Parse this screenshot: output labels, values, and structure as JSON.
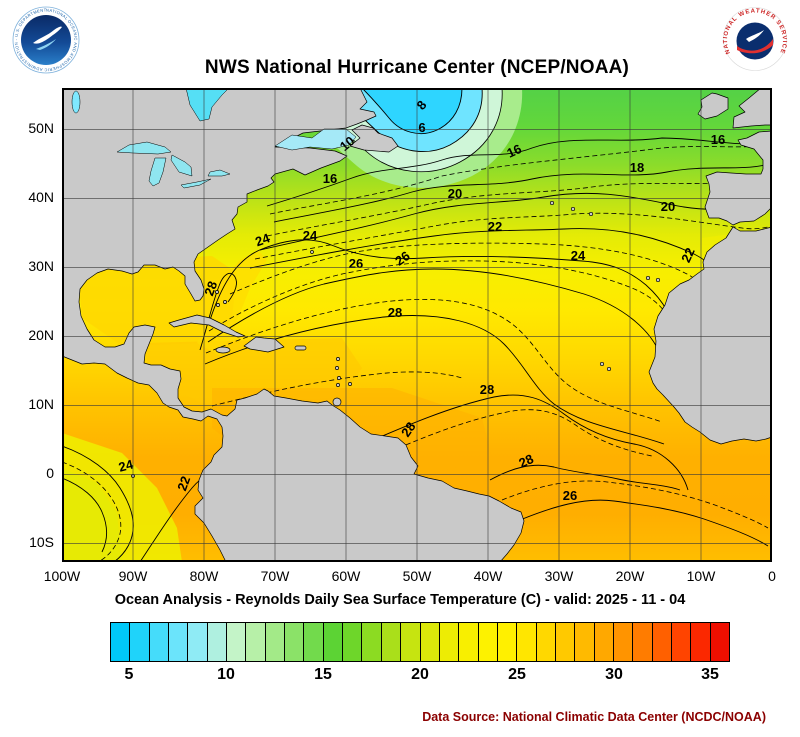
{
  "header": {
    "title": "NWS National Hurricane Center (NCEP/NOAA)",
    "noaa_logo": {
      "ring_text": "NATIONAL OCEANIC AND ATMOSPHERIC ADMINISTRATION - U.S. DEPARTMENT OF COMMERCE"
    },
    "nws_logo": {
      "ring_text": "NATIONAL WEATHER SERVICE"
    }
  },
  "map": {
    "lat_ticks": [
      "50N",
      "40N",
      "30N",
      "20N",
      "10N",
      "0",
      "10S"
    ],
    "lon_ticks": [
      "100W",
      "90W",
      "80W",
      "70W",
      "60W",
      "50W",
      "40W",
      "30W",
      "20W",
      "10W",
      "0"
    ],
    "contour_labels": [
      "8",
      "6",
      "10",
      "16",
      "16",
      "16",
      "18",
      "20",
      "20",
      "22",
      "22",
      "24",
      "24",
      "24",
      "26",
      "26",
      "28",
      "28",
      "28",
      "28",
      "28",
      "26",
      "24",
      "22"
    ],
    "land_color": "#c9c9c9"
  },
  "caption": "Ocean Analysis - Reynolds Daily Sea Surface Temperature (C) - valid: 2025 - 11 - 04",
  "colorbar": {
    "tick_labels": [
      "5",
      "10",
      "15",
      "20",
      "25",
      "30",
      "35"
    ],
    "colors": [
      "#00C8F8",
      "#1FD3FA",
      "#45DCFA",
      "#6BE4FB",
      "#8FEBF5",
      "#AFF0E0",
      "#C4F4C8",
      "#B7F0A8",
      "#A3EA88",
      "#8BE268",
      "#72DA4C",
      "#5CD334",
      "#6ED62A",
      "#8CDB22",
      "#AADF1A",
      "#C6E410",
      "#DCE80A",
      "#EDEC04",
      "#F8EF00",
      "#FDF200",
      "#FFF000",
      "#FFE600",
      "#FFD800",
      "#FFC900",
      "#FFBA00",
      "#FFA800",
      "#FF9400",
      "#FF7C00",
      "#FF6000",
      "#FF4400",
      "#FB2800",
      "#EE0F00"
    ]
  },
  "footer": {
    "data_source": "Data Source: National Climatic Data Center (NCDC/NOAA)"
  },
  "chart_data": {
    "type": "heatmap",
    "title": "NWS National Hurricane Center (NCEP/NOAA)",
    "subtitle": "Ocean Analysis - Reynolds Daily Sea Surface Temperature (C) - valid: 2025 - 11 - 04",
    "x_ticks": [
      "100W",
      "90W",
      "80W",
      "70W",
      "60W",
      "50W",
      "40W",
      "30W",
      "20W",
      "10W",
      "0"
    ],
    "y_ticks": [
      "50N",
      "40N",
      "30N",
      "20N",
      "10N",
      "0",
      "10S"
    ],
    "units": "C",
    "colorbar_ticks": [
      5,
      10,
      15,
      20,
      25,
      30,
      35
    ],
    "colorbar_range": [
      4,
      36
    ],
    "contour_values_labeled": [
      6,
      8,
      10,
      16,
      18,
      20,
      22,
      24,
      26,
      28
    ],
    "legend_position": "bottom"
  }
}
